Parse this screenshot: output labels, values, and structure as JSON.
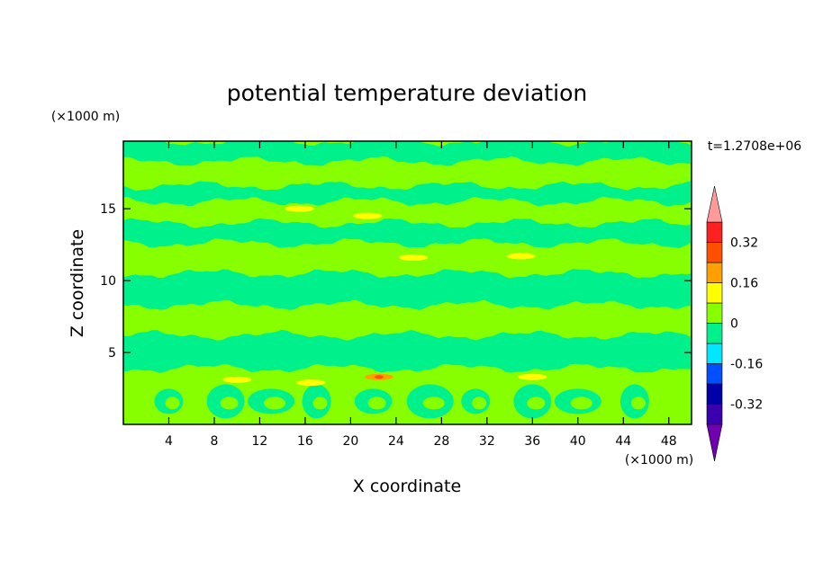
{
  "chart_data": {
    "type": "heatmap",
    "title": "potential temperature deviation",
    "xlabel": "X coordinate",
    "ylabel": "Z coordinate",
    "x_units": "(×1000 m)",
    "y_units": "(×1000 m)",
    "time_label": "t=1.2708e+06",
    "x_ticks": [
      4,
      8,
      12,
      16,
      20,
      24,
      28,
      32,
      36,
      40,
      44,
      48
    ],
    "y_ticks": [
      5,
      10,
      15
    ],
    "xlim": [
      0,
      50
    ],
    "ylim": [
      0,
      19.7
    ],
    "colorbar": {
      "levels": [
        -0.4,
        -0.32,
        -0.24,
        -0.16,
        -0.08,
        0,
        0.08,
        0.16,
        0.24,
        0.32,
        0.4
      ],
      "labels": [
        "0.32",
        "0.16",
        "0",
        "-0.16",
        "-0.32"
      ],
      "label_values": [
        0.32,
        0.16,
        0,
        -0.16,
        -0.32
      ],
      "colors": [
        "#3a00b0",
        "#0000a8",
        "#0050ff",
        "#00e8ff",
        "#00f08c",
        "#88ff00",
        "#ffff00",
        "#ffa000",
        "#ff5000",
        "#ff2020"
      ],
      "over_color": "#ff9a9a",
      "under_color": "#7000b0",
      "extend": "both"
    },
    "field_description_colors": {
      "background_positive": "#88ff00",
      "band_neutral": "#00f08c",
      "warm_spot": "#ffff00",
      "hot_spot": "#ffa000"
    },
    "bands": [
      {
        "z0": 0,
        "z1": 3.3,
        "value": 0.04
      },
      {
        "z0": 3.3,
        "z1": 3.9,
        "value": 0.02
      },
      {
        "z0": 3.9,
        "z1": 6.2,
        "value": -0.04
      },
      {
        "z0": 6.2,
        "z1": 8.3,
        "value": 0.04
      },
      {
        "z0": 8.3,
        "z1": 10.5,
        "value": -0.04
      },
      {
        "z0": 10.5,
        "z1": 12.6,
        "value": 0.04
      },
      {
        "z0": 12.6,
        "z1": 14.0,
        "value": -0.04
      },
      {
        "z0": 14.0,
        "z1": 15.5,
        "value": 0.04
      },
      {
        "z0": 15.5,
        "z1": 16.6,
        "value": -0.04
      },
      {
        "z0": 16.6,
        "z1": 18.3,
        "value": 0.04
      },
      {
        "z0": 18.3,
        "z1": 19.7,
        "value": -0.04
      }
    ],
    "hot_spots": [
      {
        "x": 21.5,
        "z": 14.5,
        "value": 0.12
      },
      {
        "x": 15.5,
        "z": 15.0,
        "value": 0.1
      },
      {
        "x": 35.0,
        "z": 11.7,
        "value": 0.12
      },
      {
        "x": 25.5,
        "z": 11.6,
        "value": 0.1
      },
      {
        "x": 16.5,
        "z": 2.9,
        "value": 0.12
      },
      {
        "x": 22.5,
        "z": 3.3,
        "value": 0.18
      },
      {
        "x": 36.0,
        "z": 3.3,
        "value": 0.14
      },
      {
        "x": 10.0,
        "z": 3.1,
        "value": 0.1
      }
    ]
  }
}
